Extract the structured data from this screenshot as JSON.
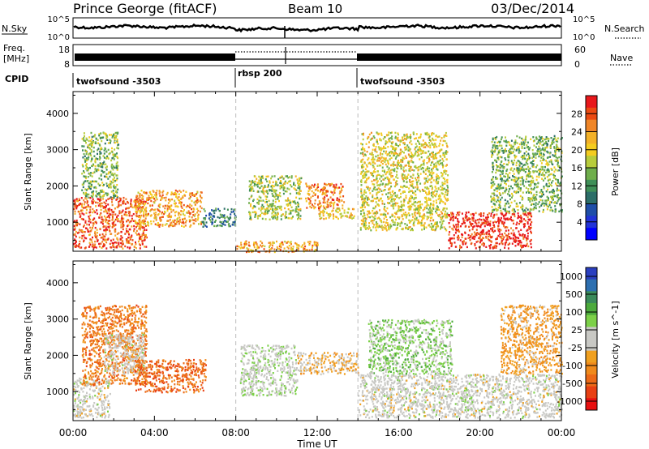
{
  "header": {
    "title": "Prince George (fitACF)",
    "beam": "Beam 10",
    "date": "03/Dec/2014"
  },
  "sky_panel": {
    "left_label": "N.Sky",
    "left_ticks": [
      "10^5",
      "10^0"
    ],
    "right_ticks": [
      "10^5",
      "10^0"
    ],
    "right_label": "N.Search"
  },
  "freq_panel": {
    "label_line1": "Freq.",
    "label_line2": "[MHz]",
    "left_ticks": [
      "18",
      "8"
    ],
    "right_ticks": [
      "60",
      "0"
    ],
    "right_label": "Nave"
  },
  "cpid": {
    "label": "CPID",
    "segments": [
      {
        "name": "twofsound -3503",
        "start_hour": 0,
        "end_hour": 8
      },
      {
        "name": "rbsp 200",
        "start_hour": 8,
        "end_hour": 14
      },
      {
        "name": "twofsound -3503",
        "start_hour": 14,
        "end_hour": 24
      }
    ]
  },
  "power_panel": {
    "ylabel": "Slant Range [km]",
    "yticks": [
      "4000",
      "3000",
      "2000",
      "1000"
    ],
    "colorbar_label": "Power [dB]",
    "colorbar_ticks": [
      "28",
      "24",
      "20",
      "16",
      "12",
      "8",
      "4"
    ],
    "colorbar_colors": [
      "#e8181c",
      "#ec4a12",
      "#f08628",
      "#f3b128",
      "#f4cc20",
      "#b8cc3c",
      "#6fae4c",
      "#3f8f58",
      "#2c6e68",
      "#1f4ea8",
      "#2233d8",
      "#0000ff"
    ]
  },
  "velocity_panel": {
    "ylabel": "Slant Range [km]",
    "yticks": [
      "4000",
      "3000",
      "2000",
      "1000"
    ],
    "colorbar_label": "Velocity [m s^-1]",
    "colorbar_ticks": [
      "1000",
      "500",
      "100",
      "25",
      "-25",
      "-100",
      "-500",
      "-1000"
    ],
    "colorbar_colors": [
      "#2a3fc0",
      "#2d6fb0",
      "#3a8a5a",
      "#4caa3c",
      "#7cd048",
      "#c8c8c4",
      "#c8c8c4",
      "#f0a020",
      "#f08a1c",
      "#ec6a18",
      "#e84014",
      "#e81010"
    ]
  },
  "x_axis": {
    "label": "Time UT",
    "ticks": [
      "00:00",
      "04:00",
      "08:00",
      "12:00",
      "16:00",
      "20:00",
      "00:00"
    ]
  },
  "chart_data": [
    {
      "type": "heatmap",
      "title": "Prince George (fitACF)",
      "xlabel": "Time UT",
      "ylabel": "Slant Range [km]",
      "xlim": [
        0,
        24
      ],
      "ylim": [
        200,
        4600
      ],
      "colorbar": {
        "label": "Power [dB]",
        "range": [
          0,
          30
        ]
      },
      "regions": [
        {
          "hour_start": 0.0,
          "hour_end": 3.6,
          "range_start": 300,
          "range_end": 1700,
          "power_db": 26
        },
        {
          "hour_start": 0.4,
          "hour_end": 2.2,
          "range_start": 1700,
          "range_end": 3500,
          "power_db": 14
        },
        {
          "hour_start": 3.0,
          "hour_end": 6.3,
          "range_start": 900,
          "range_end": 1900,
          "power_db": 22
        },
        {
          "hour_start": 6.3,
          "hour_end": 8.0,
          "range_start": 900,
          "range_end": 1400,
          "power_db": 10
        },
        {
          "hour_start": 8.6,
          "hour_end": 11.2,
          "range_start": 1100,
          "range_end": 2300,
          "power_db": 16
        },
        {
          "hour_start": 11.4,
          "hour_end": 13.3,
          "range_start": 1400,
          "range_end": 2100,
          "power_db": 24
        },
        {
          "hour_start": 12.0,
          "hour_end": 13.8,
          "range_start": 1100,
          "range_end": 1400,
          "power_db": 20
        },
        {
          "hour_start": 14.1,
          "hour_end": 18.4,
          "range_start": 800,
          "range_end": 3500,
          "power_db": 18
        },
        {
          "hour_start": 18.4,
          "hour_end": 22.5,
          "range_start": 300,
          "range_end": 1300,
          "power_db": 28
        },
        {
          "hour_start": 20.5,
          "hour_end": 24.0,
          "range_start": 1300,
          "range_end": 3400,
          "power_db": 14
        },
        {
          "hour_start": 8.0,
          "hour_end": 12.0,
          "range_start": 200,
          "range_end": 500,
          "power_db": 22
        }
      ]
    },
    {
      "type": "heatmap",
      "title": "Prince George (fitACF)",
      "xlabel": "Time UT",
      "ylabel": "Slant Range [km]",
      "xlim": [
        0,
        24
      ],
      "ylim": [
        200,
        4600
      ],
      "colorbar": {
        "label": "Velocity [m s^-1]",
        "range": [
          -1000,
          1000
        ]
      },
      "regions": [
        {
          "hour_start": 0.0,
          "hour_end": 1.8,
          "range_start": 300,
          "range_end": 1400,
          "velocity": 0
        },
        {
          "hour_start": 0.4,
          "hour_end": 3.6,
          "range_start": 1200,
          "range_end": 3400,
          "velocity": -500
        },
        {
          "hour_start": 1.5,
          "hour_end": 3.5,
          "range_start": 1500,
          "range_end": 2600,
          "velocity": 0
        },
        {
          "hour_start": 3.0,
          "hour_end": 6.5,
          "range_start": 1000,
          "range_end": 1900,
          "velocity": -600
        },
        {
          "hour_start": 8.2,
          "hour_end": 11.0,
          "range_start": 900,
          "range_end": 2300,
          "velocity": 80
        },
        {
          "hour_start": 11.0,
          "hour_end": 14.0,
          "range_start": 1500,
          "range_end": 2100,
          "velocity": -200
        },
        {
          "hour_start": 14.0,
          "hour_end": 24.0,
          "range_start": 300,
          "range_end": 1500,
          "velocity": 0
        },
        {
          "hour_start": 14.5,
          "hour_end": 18.6,
          "range_start": 1500,
          "range_end": 3000,
          "velocity": 200
        },
        {
          "hour_start": 19.0,
          "hour_end": 19.6,
          "range_start": 500,
          "range_end": 1100,
          "velocity": 100
        },
        {
          "hour_start": 21.0,
          "hour_end": 24.0,
          "range_start": 1500,
          "range_end": 3400,
          "velocity": -300
        }
      ]
    }
  ]
}
